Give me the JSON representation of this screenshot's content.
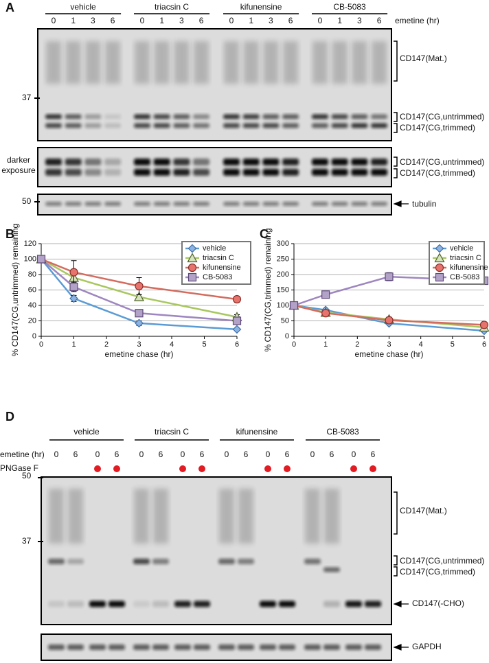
{
  "panel_a": {
    "label": "A",
    "groups": [
      "vehicle",
      "triacsin C",
      "kifunensine",
      "CB-5083"
    ],
    "timepoints": [
      "0",
      "1",
      "3",
      "6"
    ],
    "time_axis_label": "emetine (hr)",
    "marker_37": "37",
    "marker_50": "50",
    "mat_label": "CD147(Mat.)",
    "untrimmed_label": "CD147(CG,untrimmed)",
    "trimmed_label": "CD147(CG,trimmed)",
    "darker_exposure": [
      "darker",
      "exposure"
    ],
    "tubulin_label": "tubulin"
  },
  "chart_data": [
    {
      "type": "line",
      "label": "B",
      "y_label": "% CD147(CG,untrimmed) remaining",
      "x_label": "emetine chase (hr)",
      "x": [
        0,
        1,
        3,
        6
      ],
      "xlim": [
        0,
        6
      ],
      "xticks": [
        0,
        1,
        2,
        3,
        4,
        5,
        6
      ],
      "ylim": [
        0,
        120
      ],
      "yticks": [
        0,
        20,
        40,
        60,
        80,
        100,
        120
      ],
      "grid": true,
      "legend": "upper-right",
      "series": [
        {
          "name": "vehicle",
          "color": "#5b9bd5",
          "marker": "diamond",
          "marker_fill": "#8db3e2",
          "marker_edge": "#3b6ea8",
          "values": [
            100,
            49,
            17,
            9
          ],
          "errors": [
            null,
            4,
            3,
            1
          ]
        },
        {
          "name": "triacsin C",
          "color": "#a9c75f",
          "marker": "triangle",
          "marker_fill": "#d7e4bd",
          "marker_edge": "#4f6228",
          "values": [
            100,
            76,
            51,
            25
          ],
          "errors": [
            null,
            5,
            3,
            3
          ]
        },
        {
          "name": "kifunensine",
          "color": "#d46b5e",
          "marker": "circle",
          "marker_fill": "#e6736c",
          "marker_edge": "#8b2f2b",
          "values": [
            100,
            83,
            65,
            48
          ],
          "errors": [
            null,
            15,
            11,
            4
          ]
        },
        {
          "name": "CB-5083",
          "color": "#9e86c0",
          "marker": "square",
          "marker_fill": "#b3a2c7",
          "marker_edge": "#5f497a",
          "values": [
            100,
            64,
            30,
            20
          ],
          "errors": [
            null,
            6,
            2,
            2
          ]
        }
      ]
    },
    {
      "type": "line",
      "label": "C",
      "y_label": "% CD147(CG,trimmed) remaining",
      "x_label": "emetine chase (hr)",
      "x": [
        0,
        1,
        3,
        6
      ],
      "xlim": [
        0,
        6
      ],
      "xticks": [
        0,
        1,
        2,
        3,
        4,
        5,
        6
      ],
      "ylim": [
        0,
        300
      ],
      "yticks": [
        0,
        50,
        100,
        150,
        200,
        250,
        300
      ],
      "grid": true,
      "legend": "upper-right",
      "series": [
        {
          "name": "vehicle",
          "color": "#5b9bd5",
          "marker": "diamond",
          "marker_fill": "#8db3e2",
          "marker_edge": "#3b6ea8",
          "values": [
            100,
            85,
            42,
            18
          ],
          "errors": [
            null,
            4,
            3,
            2
          ]
        },
        {
          "name": "triacsin C",
          "color": "#a9c75f",
          "marker": "triangle",
          "marker_fill": "#d7e4bd",
          "marker_edge": "#4f6228",
          "values": [
            100,
            77,
            55,
            29
          ],
          "errors": [
            null,
            5,
            4,
            3
          ]
        },
        {
          "name": "kifunensine",
          "color": "#d46b5e",
          "marker": "circle",
          "marker_fill": "#e6736c",
          "marker_edge": "#8b2f2b",
          "values": [
            100,
            75,
            52,
            37
          ],
          "errors": [
            null,
            10,
            10,
            3
          ]
        },
        {
          "name": "CB-5083",
          "color": "#9e86c0",
          "marker": "square",
          "marker_fill": "#b3a2c7",
          "marker_edge": "#5f497a",
          "values": [
            100,
            135,
            193,
            180
          ],
          "errors": [
            null,
            5,
            13,
            12
          ]
        }
      ]
    }
  ],
  "panel_d": {
    "label": "D",
    "groups": [
      "vehicle",
      "triacsin C",
      "kifunensine",
      "CB-5083"
    ],
    "emetine": [
      "0",
      "6",
      "0",
      "6"
    ],
    "emetine_label": "emetine (hr)",
    "pngase_label": "PNGase F",
    "pngase_lanes": [
      false,
      false,
      true,
      true
    ],
    "marker_50": "50",
    "marker_37": "37",
    "mat_label": "CD147(Mat.)",
    "untrimmed_label": "CD147(CG,untrimmed)",
    "trimmed_label": "CD147(CG,trimmed)",
    "cho_label": "CD147(-CHO)",
    "gapdh_label": "GAPDH"
  }
}
